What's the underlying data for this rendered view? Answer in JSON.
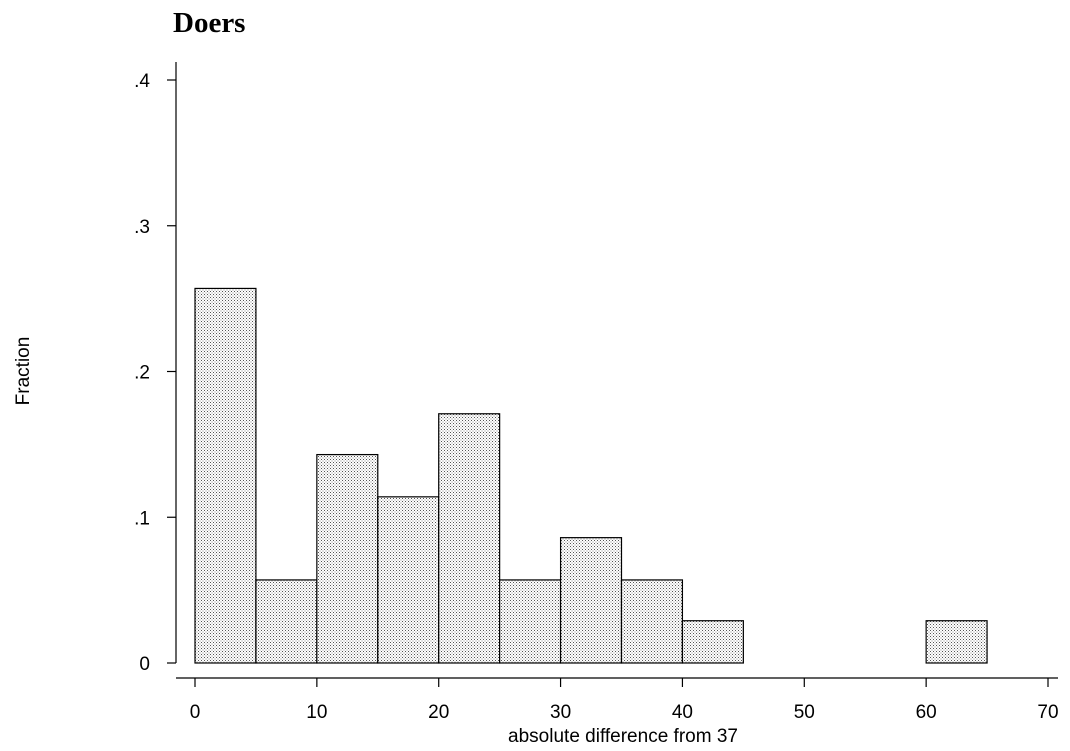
{
  "chart_data": {
    "type": "bar",
    "title": "Doers",
    "xlabel": "absolute difference from 37",
    "ylabel": "Fraction",
    "xlim": [
      0,
      70
    ],
    "ylim": [
      0,
      0.4
    ],
    "xticks": [
      0,
      10,
      20,
      30,
      40,
      50,
      60,
      70
    ],
    "yticks": [
      0,
      0.1,
      0.2,
      0.3,
      0.4
    ],
    "xtick_labels": [
      "0",
      "10",
      "20",
      "30",
      "40",
      "50",
      "60",
      "70"
    ],
    "ytick_labels": [
      "0",
      ".1",
      ".2",
      ".3",
      ".4"
    ],
    "bin_width": 5,
    "bins": [
      {
        "x0": 0,
        "x1": 5,
        "value": 0.257
      },
      {
        "x0": 5,
        "x1": 10,
        "value": 0.057
      },
      {
        "x0": 10,
        "x1": 15,
        "value": 0.143
      },
      {
        "x0": 15,
        "x1": 20,
        "value": 0.114
      },
      {
        "x0": 20,
        "x1": 25,
        "value": 0.171
      },
      {
        "x0": 25,
        "x1": 30,
        "value": 0.057
      },
      {
        "x0": 30,
        "x1": 35,
        "value": 0.086
      },
      {
        "x0": 35,
        "x1": 40,
        "value": 0.057
      },
      {
        "x0": 40,
        "x1": 45,
        "value": 0.029
      },
      {
        "x0": 60,
        "x1": 65,
        "value": 0.029
      }
    ],
    "grid": false,
    "legend": "none"
  }
}
